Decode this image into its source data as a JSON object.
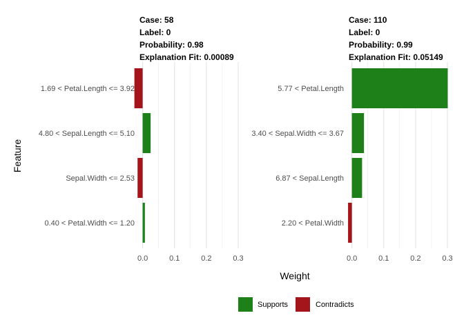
{
  "chart_data": {
    "type": "bar",
    "orientation": "horizontal",
    "xlabel": "Weight",
    "ylabel": "Feature",
    "xlim": [
      -0.01,
      0.3
    ],
    "xticks": [
      0.0,
      0.1,
      0.2,
      0.3
    ],
    "xtick_labels": [
      "0.0",
      "0.1",
      "0.2",
      "0.3"
    ],
    "legend": {
      "placement": "bottom",
      "entries": [
        {
          "label": "Supports",
          "color": "#1e8019"
        },
        {
          "label": "Contradicts",
          "color": "#a3141b"
        }
      ]
    },
    "facets": [
      {
        "header": [
          "Case: 58",
          "Label: 0",
          "Probability: 0.98",
          "Explanation Fit: 0.00089"
        ],
        "bars": [
          {
            "feature": "1.69 < Petal.Length <= 3.92",
            "weight": -0.026,
            "type": "Contradicts"
          },
          {
            "feature": "4.80 < Sepal.Length <= 5.10",
            "weight": 0.025,
            "type": "Supports"
          },
          {
            "feature": "Sepal.Width <= 2.53",
            "weight": -0.016,
            "type": "Contradicts"
          },
          {
            "feature": "0.40 < Petal.Width <= 1.20",
            "weight": 0.007,
            "type": "Supports"
          }
        ]
      },
      {
        "header": [
          "Case: 110",
          "Label: 0",
          "Probability: 0.99",
          "Explanation Fit: 0.05149"
        ],
        "bars": [
          {
            "feature": "5.77 < Petal.Length",
            "weight": 0.301,
            "type": "Supports"
          },
          {
            "feature": "3.40 < Sepal.Width <= 3.67",
            "weight": 0.038,
            "type": "Supports"
          },
          {
            "feature": "6.87 < Sepal.Length",
            "weight": 0.032,
            "type": "Supports"
          },
          {
            "feature": "2.20 < Petal.Width",
            "weight": -0.012,
            "type": "Contradicts"
          }
        ]
      }
    ]
  }
}
